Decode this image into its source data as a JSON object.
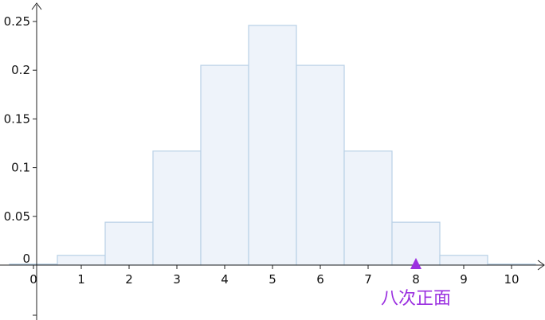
{
  "chart_data": {
    "type": "bar",
    "title": "",
    "xlabel": "",
    "ylabel": "",
    "categories": [
      "0",
      "1",
      "2",
      "3",
      "4",
      "5",
      "6",
      "7",
      "8",
      "9",
      "10"
    ],
    "values": [
      0.001,
      0.01,
      0.044,
      0.117,
      0.205,
      0.246,
      0.205,
      0.117,
      0.044,
      0.01,
      0.001
    ],
    "xlim": [
      -0.7,
      10.7
    ],
    "ylim": [
      0,
      0.25
    ],
    "y_ticks": [
      "0",
      "0.05",
      "0.1",
      "0.15",
      "0.2",
      "0.25"
    ],
    "x_ticks": [
      "0",
      "1",
      "2",
      "3",
      "4",
      "5",
      "6",
      "7",
      "8",
      "9",
      "10"
    ],
    "grid": false,
    "bar_fill": "#eef3fa",
    "bar_stroke": "#b8d0e6",
    "marker": {
      "x": 8,
      "label": "八次正面",
      "color": "#9b30e0"
    }
  }
}
